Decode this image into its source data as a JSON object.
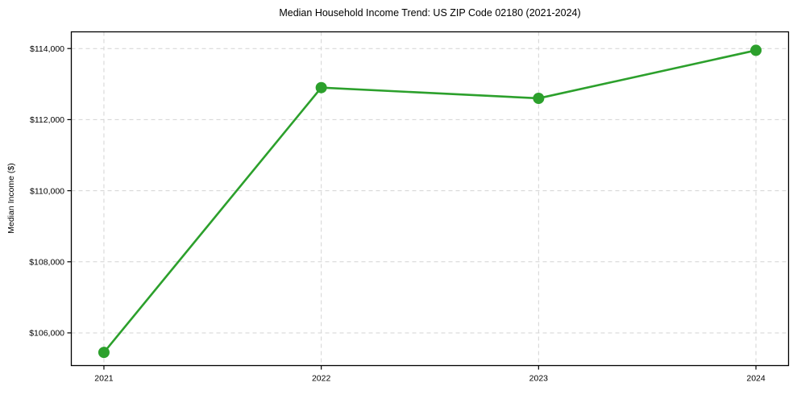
{
  "chart_data": {
    "type": "line",
    "title": "Median Household Income Trend: US ZIP Code 02180 (2021-2024)",
    "xlabel": "",
    "ylabel": "Median Income ($)",
    "x": [
      2021,
      2022,
      2023,
      2024
    ],
    "values": [
      105450,
      112900,
      112600,
      113950
    ],
    "xticks": {
      "values": [
        2021,
        2022,
        2023,
        2024
      ],
      "labels": [
        "2021",
        "2022",
        "2023",
        "2024"
      ]
    },
    "yticks": {
      "values": [
        106000,
        108000,
        110000,
        112000,
        114000
      ],
      "labels": [
        "$106,000",
        "$108,000",
        "$110,000",
        "$112,000",
        "$114,000"
      ]
    },
    "xlim": [
      2020.85,
      2024.15
    ],
    "ylim": [
      105080,
      114470
    ],
    "grid": true,
    "grid_style": "dashed",
    "legend": "none",
    "colors": {
      "line": "#2ca02c",
      "marker": "#2ca02c",
      "grid": "#d3d3d3",
      "axis": "#000000",
      "text": "#000000",
      "background": "#ffffff"
    }
  }
}
